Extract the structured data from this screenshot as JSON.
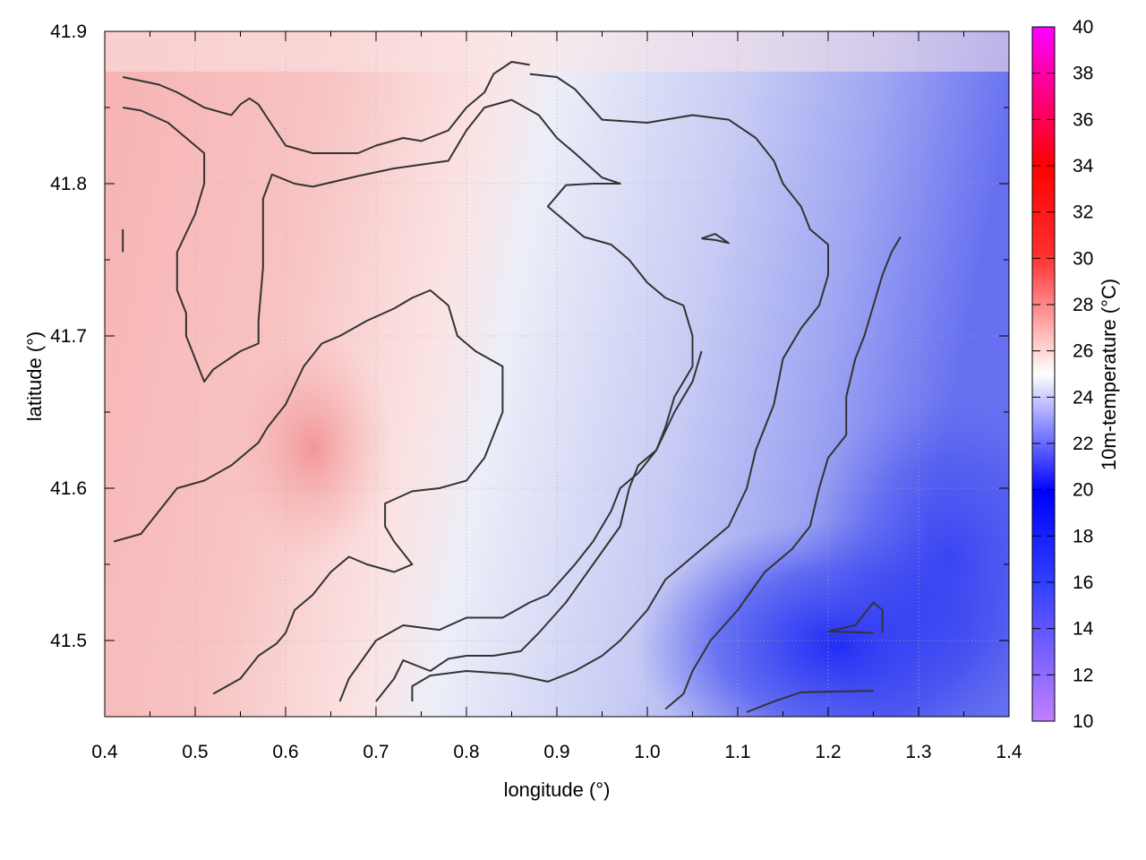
{
  "chart_data": {
    "type": "heatmap",
    "title": "",
    "xlabel": "longitude (°)",
    "ylabel": "latitude (°)",
    "colorbar_label": "10m-temperature (°C)",
    "xlim": [
      0.4,
      1.4
    ],
    "ylim": [
      41.45,
      41.9
    ],
    "x_ticks": [
      "0.4",
      "0.5",
      "0.6",
      "0.7",
      "0.8",
      "0.9",
      "1.0",
      "1.1",
      "1.2",
      "1.3",
      "1.4"
    ],
    "y_ticks": [
      "41.5",
      "41.6",
      "41.7",
      "41.8",
      "41.9"
    ],
    "colorbar_range": [
      10,
      40
    ],
    "colorbar_ticks": [
      "10",
      "12",
      "14",
      "16",
      "18",
      "20",
      "22",
      "24",
      "26",
      "28",
      "30",
      "32",
      "34",
      "36",
      "38",
      "40"
    ],
    "grid": true,
    "colors": {
      "cold": "#0000ff",
      "neutral": "#ffffff",
      "warm": "#ff0000",
      "hot": "#ff00ff",
      "very_cold": "#c080ff",
      "contour": "#333333"
    },
    "temperature_field_summary": [
      {
        "region": "west (lon 0.4–0.75)",
        "temp_c": 27
      },
      {
        "region": "center (lon 0.8–1.0)",
        "temp_c": 23
      },
      {
        "region": "east (lon 1.1–1.4)",
        "temp_c": 21
      },
      {
        "region": "southeast minimum (lon 1.2, lat 41.49)",
        "temp_c": 18
      }
    ],
    "contours": [
      {
        "points": [
          [
            0.42,
            41.87
          ],
          [
            0.46,
            41.865
          ],
          [
            0.48,
            41.86
          ],
          [
            0.51,
            41.85
          ],
          [
            0.54,
            41.845
          ],
          [
            0.55,
            41.852
          ],
          [
            0.56,
            41.856
          ],
          [
            0.57,
            41.852
          ],
          [
            0.6,
            41.825
          ],
          [
            0.63,
            41.82
          ],
          [
            0.68,
            41.82
          ],
          [
            0.7,
            41.825
          ],
          [
            0.73,
            41.83
          ],
          [
            0.75,
            41.828
          ],
          [
            0.78,
            41.835
          ],
          [
            0.8,
            41.85
          ],
          [
            0.82,
            41.86
          ],
          [
            0.83,
            41.872
          ],
          [
            0.85,
            41.88
          ],
          [
            0.87,
            41.878
          ]
        ]
      },
      {
        "points": [
          [
            0.42,
            41.85
          ],
          [
            0.44,
            41.848
          ],
          [
            0.47,
            41.84
          ],
          [
            0.49,
            41.83
          ],
          [
            0.51,
            41.82
          ],
          [
            0.51,
            41.8
          ],
          [
            0.5,
            41.78
          ],
          [
            0.48,
            41.755
          ],
          [
            0.48,
            41.73
          ],
          [
            0.49,
            41.715
          ],
          [
            0.49,
            41.7
          ],
          [
            0.5,
            41.685
          ],
          [
            0.51,
            41.67
          ],
          [
            0.52,
            41.678
          ],
          [
            0.55,
            41.69
          ],
          [
            0.57,
            41.695
          ],
          [
            0.57,
            41.71
          ],
          [
            0.575,
            41.745
          ],
          [
            0.575,
            41.79
          ],
          [
            0.585,
            41.806
          ],
          [
            0.61,
            41.8
          ],
          [
            0.63,
            41.798
          ],
          [
            0.68,
            41.805
          ],
          [
            0.72,
            41.81
          ],
          [
            0.78,
            41.815
          ],
          [
            0.8,
            41.835
          ],
          [
            0.82,
            41.85
          ],
          [
            0.85,
            41.855
          ],
          [
            0.88,
            41.845
          ],
          [
            0.9,
            41.83
          ],
          [
            0.92,
            41.82
          ],
          [
            0.95,
            41.804
          ],
          [
            0.97,
            41.8
          ],
          [
            0.96,
            41.8
          ],
          [
            0.94,
            41.8
          ],
          [
            0.91,
            41.799
          ],
          [
            0.89,
            41.785
          ],
          [
            0.91,
            41.775
          ],
          [
            0.93,
            41.765
          ],
          [
            0.96,
            41.76
          ],
          [
            0.98,
            41.75
          ],
          [
            1.0,
            41.735
          ],
          [
            1.02,
            41.725
          ],
          [
            1.04,
            41.72
          ],
          [
            1.05,
            41.7
          ],
          [
            1.05,
            41.68
          ],
          [
            1.03,
            41.66
          ],
          [
            1.02,
            41.64
          ],
          [
            1.01,
            41.625
          ],
          [
            0.99,
            41.615
          ],
          [
            0.98,
            41.6
          ],
          [
            0.97,
            41.575
          ],
          [
            0.94,
            41.55
          ],
          [
            0.91,
            41.525
          ],
          [
            0.88,
            41.505
          ],
          [
            0.86,
            41.493
          ],
          [
            0.83,
            41.49
          ],
          [
            0.8,
            41.49
          ],
          [
            0.78,
            41.488
          ],
          [
            0.76,
            41.48
          ],
          [
            0.73,
            41.487
          ],
          [
            0.72,
            41.475
          ],
          [
            0.7,
            41.46
          ]
        ]
      },
      {
        "points": [
          [
            0.41,
            41.565
          ],
          [
            0.44,
            41.57
          ],
          [
            0.46,
            41.585
          ],
          [
            0.48,
            41.6
          ],
          [
            0.51,
            41.605
          ],
          [
            0.54,
            41.615
          ],
          [
            0.57,
            41.63
          ],
          [
            0.58,
            41.64
          ],
          [
            0.6,
            41.655
          ],
          [
            0.62,
            41.68
          ],
          [
            0.64,
            41.695
          ],
          [
            0.66,
            41.7
          ],
          [
            0.69,
            41.71
          ],
          [
            0.72,
            41.718
          ],
          [
            0.74,
            41.725
          ],
          [
            0.76,
            41.73
          ],
          [
            0.78,
            41.72
          ],
          [
            0.79,
            41.7
          ],
          [
            0.81,
            41.69
          ],
          [
            0.84,
            41.68
          ],
          [
            0.84,
            41.65
          ],
          [
            0.82,
            41.62
          ],
          [
            0.8,
            41.605
          ],
          [
            0.77,
            41.6
          ],
          [
            0.74,
            41.598
          ],
          [
            0.71,
            41.59
          ],
          [
            0.71,
            41.575
          ],
          [
            0.72,
            41.565
          ],
          [
            0.74,
            41.55
          ],
          [
            0.72,
            41.545
          ],
          [
            0.69,
            41.55
          ],
          [
            0.67,
            41.555
          ],
          [
            0.65,
            41.545
          ],
          [
            0.63,
            41.53
          ],
          [
            0.61,
            41.52
          ],
          [
            0.6,
            41.505
          ],
          [
            0.59,
            41.498
          ],
          [
            0.57,
            41.49
          ],
          [
            0.55,
            41.475
          ],
          [
            0.52,
            41.465
          ]
        ]
      },
      {
        "points": [
          [
            0.66,
            41.46
          ],
          [
            0.67,
            41.475
          ],
          [
            0.7,
            41.5
          ],
          [
            0.73,
            41.51
          ],
          [
            0.77,
            41.507
          ],
          [
            0.8,
            41.515
          ],
          [
            0.84,
            41.515
          ],
          [
            0.87,
            41.525
          ],
          [
            0.89,
            41.53
          ],
          [
            0.92,
            41.55
          ],
          [
            0.94,
            41.565
          ],
          [
            0.96,
            41.585
          ],
          [
            0.97,
            41.6
          ],
          [
            0.99,
            41.61
          ],
          [
            1.01,
            41.625
          ],
          [
            1.03,
            41.65
          ],
          [
            1.05,
            41.67
          ],
          [
            1.06,
            41.69
          ]
        ]
      },
      {
        "points": [
          [
            1.02,
            41.455
          ],
          [
            1.04,
            41.465
          ],
          [
            1.05,
            41.48
          ],
          [
            1.07,
            41.5
          ],
          [
            1.1,
            41.52
          ],
          [
            1.13,
            41.545
          ],
          [
            1.16,
            41.56
          ],
          [
            1.18,
            41.575
          ],
          [
            1.19,
            41.6
          ],
          [
            1.2,
            41.62
          ],
          [
            1.22,
            41.635
          ],
          [
            1.22,
            41.66
          ],
          [
            1.23,
            41.685
          ],
          [
            1.24,
            41.7
          ],
          [
            1.25,
            41.72
          ],
          [
            1.26,
            41.74
          ],
          [
            1.27,
            41.755
          ],
          [
            1.28,
            41.765
          ]
        ]
      },
      {
        "points": [
          [
            0.74,
            41.46
          ],
          [
            0.74,
            41.47
          ],
          [
            0.76,
            41.477
          ],
          [
            0.8,
            41.48
          ],
          [
            0.85,
            41.478
          ],
          [
            0.89,
            41.473
          ],
          [
            0.92,
            41.48
          ],
          [
            0.95,
            41.49
          ],
          [
            0.97,
            41.5
          ],
          [
            1.0,
            41.52
          ],
          [
            1.02,
            41.54
          ],
          [
            1.05,
            41.555
          ],
          [
            1.09,
            41.575
          ],
          [
            1.11,
            41.6
          ],
          [
            1.12,
            41.625
          ],
          [
            1.14,
            41.655
          ],
          [
            1.15,
            41.685
          ],
          [
            1.17,
            41.705
          ],
          [
            1.19,
            41.72
          ],
          [
            1.2,
            41.74
          ],
          [
            1.2,
            41.76
          ],
          [
            1.18,
            41.77
          ],
          [
            1.17,
            41.785
          ],
          [
            1.15,
            41.8
          ],
          [
            1.14,
            41.815
          ],
          [
            1.12,
            41.83
          ],
          [
            1.09,
            41.842
          ],
          [
            1.05,
            41.845
          ],
          [
            1.0,
            41.84
          ],
          [
            0.95,
            41.842
          ],
          [
            0.92,
            41.862
          ],
          [
            0.9,
            41.87
          ],
          [
            0.87,
            41.872
          ]
        ]
      },
      {
        "points": [
          [
            1.11,
            41.453
          ],
          [
            1.14,
            41.46
          ],
          [
            1.17,
            41.466
          ],
          [
            1.25,
            41.467
          ]
        ]
      },
      {
        "points": [
          [
            1.25,
            41.505
          ],
          [
            1.2,
            41.506
          ],
          [
            1.23,
            41.51
          ],
          [
            1.25,
            41.525
          ],
          [
            1.26,
            41.52
          ],
          [
            1.26,
            41.505
          ]
        ]
      },
      {
        "points": [
          [
            1.06,
            41.764
          ],
          [
            1.075,
            41.767
          ],
          [
            1.09,
            41.761
          ],
          [
            1.075,
            41.763
          ],
          [
            1.06,
            41.764
          ]
        ]
      },
      {
        "points": [
          [
            0.42,
            41.755
          ],
          [
            0.42,
            41.76
          ],
          [
            0.42,
            41.77
          ]
        ]
      }
    ]
  }
}
